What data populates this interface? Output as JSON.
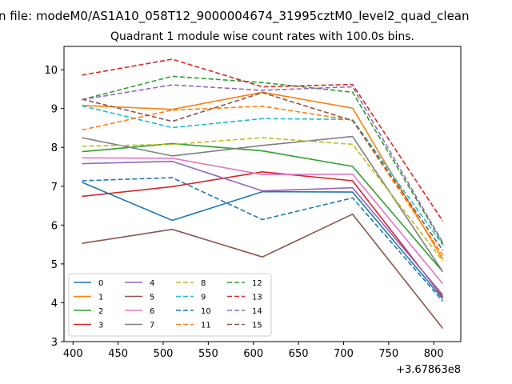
{
  "chart_data": {
    "type": "line",
    "suptitle": "n file: modeM0/AS1A10_058T12_9000004674_31995cztM0_level2_quad_clean",
    "title": "Quadrant 1 module wise count rates with 100.0s bins.",
    "xlabel": "",
    "ylabel": "",
    "x_offset_label": "+3.67863e8",
    "x": [
      410,
      510,
      610,
      710,
      810
    ],
    "xlim": [
      390,
      830
    ],
    "ylim": [
      3,
      10.6
    ],
    "xticks": [
      400,
      450,
      500,
      550,
      600,
      650,
      700,
      750,
      800
    ],
    "yticks": [
      3,
      4,
      5,
      6,
      7,
      8,
      9,
      10
    ],
    "grid": false,
    "legend": "lower-left",
    "series": [
      {
        "name": "0",
        "color": "#1f77b4",
        "style": "solid",
        "values": [
          7.1,
          6.12,
          6.86,
          6.85,
          4.1
        ]
      },
      {
        "name": "1",
        "color": "#ff7f0e",
        "style": "solid",
        "values": [
          9.08,
          8.98,
          9.42,
          9.01,
          5.12
        ]
      },
      {
        "name": "2",
        "color": "#2ca02c",
        "style": "solid",
        "values": [
          7.89,
          8.1,
          7.91,
          7.51,
          4.8
        ]
      },
      {
        "name": "3",
        "color": "#d62728",
        "style": "solid",
        "values": [
          6.74,
          6.99,
          7.37,
          7.14,
          4.15
        ]
      },
      {
        "name": "4",
        "color": "#9467bd",
        "style": "solid",
        "values": [
          7.58,
          7.64,
          6.88,
          6.96,
          4.2
        ]
      },
      {
        "name": "5",
        "color": "#8c564b",
        "style": "solid",
        "values": [
          5.53,
          5.89,
          5.18,
          6.28,
          3.34
        ]
      },
      {
        "name": "6",
        "color": "#e377c2",
        "style": "solid",
        "values": [
          7.73,
          7.72,
          7.3,
          7.31,
          4.49
        ]
      },
      {
        "name": "7",
        "color": "#7f7f7f",
        "style": "solid",
        "values": [
          8.25,
          7.78,
          8.05,
          8.28,
          4.8
        ]
      },
      {
        "name": "8",
        "color": "#bcbd22",
        "style": "dashed",
        "values": [
          8.03,
          8.08,
          8.25,
          8.08,
          5.08
        ]
      },
      {
        "name": "9",
        "color": "#17becf",
        "style": "dashed",
        "values": [
          9.07,
          8.51,
          8.74,
          8.72,
          5.49
        ]
      },
      {
        "name": "10",
        "color": "#1f77b4",
        "style": "dashed",
        "values": [
          7.14,
          7.22,
          6.14,
          6.7,
          4.04
        ]
      },
      {
        "name": "11",
        "color": "#ff7f0e",
        "style": "dashed",
        "values": [
          8.45,
          8.96,
          9.06,
          8.7,
          5.22
        ]
      },
      {
        "name": "12",
        "color": "#2ca02c",
        "style": "dashed",
        "values": [
          9.23,
          9.83,
          9.67,
          9.42,
          5.52
        ]
      },
      {
        "name": "13",
        "color": "#d62728",
        "style": "dashed",
        "values": [
          9.86,
          10.27,
          9.56,
          9.62,
          6.1
        ]
      },
      {
        "name": "14",
        "color": "#9467bd",
        "style": "dashed",
        "values": [
          9.23,
          9.61,
          9.47,
          9.56,
          5.55
        ]
      },
      {
        "name": "15",
        "color": "#8c564b",
        "style": "dashed",
        "values": [
          9.24,
          8.67,
          9.41,
          8.69,
          5.35
        ]
      }
    ]
  }
}
